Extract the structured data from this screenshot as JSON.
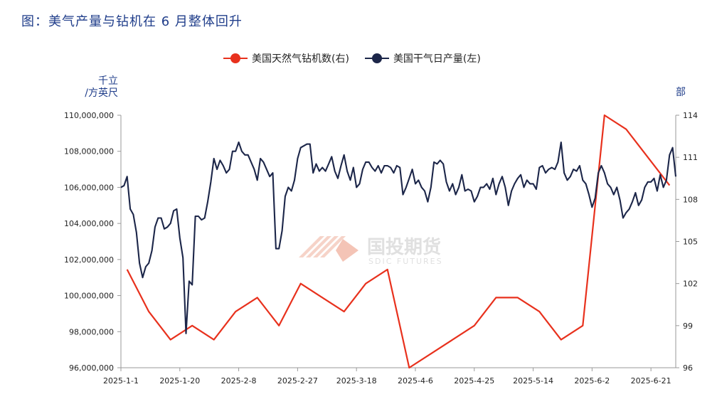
{
  "figure": {
    "title": "图：美气产量与钻机在 6 月整体回升",
    "left_unit_line1": "千立",
    "left_unit_line2": "/方英尺",
    "right_unit": "部",
    "watermark_cn": "国投期货",
    "watermark_en": "SDIC FUTURES"
  },
  "chart_data": {
    "type": "line",
    "title": "图：美气产量与钻机在 6 月整体回升",
    "x_tick_labels": [
      "2025-1-1",
      "2025-1-20",
      "2025-2-8",
      "2025-2-27",
      "2025-3-18",
      "2025-4-6",
      "2025-4-25",
      "2025-5-14",
      "2025-6-2",
      "2025-6-21"
    ],
    "x_range": [
      "2025-01-01",
      "2025-06-29"
    ],
    "left_axis": {
      "label": "千立/方英尺",
      "range": [
        96000000,
        110000000
      ],
      "ticks": [
        "96,000,000",
        "98,000,000",
        "100,000,000",
        "102,000,000",
        "104,000,000",
        "106,000,000",
        "108,000,000",
        "110,000,000"
      ]
    },
    "right_axis": {
      "label": "部",
      "range": [
        96,
        114
      ],
      "ticks": [
        "96",
        "99",
        "102",
        "105",
        "108",
        "111",
        "114"
      ]
    },
    "legend_position": "top",
    "grid": false,
    "colors": {
      "rigs": "#e8311d",
      "production": "#1c2649"
    },
    "series": [
      {
        "name": "美国天然气钻机数(右)",
        "axis": "right",
        "color": "#e8311d",
        "points": [
          [
            "2025-01-03",
            103
          ],
          [
            "2025-01-10",
            100
          ],
          [
            "2025-01-17",
            98
          ],
          [
            "2025-01-24",
            99
          ],
          [
            "2025-01-31",
            98
          ],
          [
            "2025-02-07",
            100
          ],
          [
            "2025-02-14",
            101
          ],
          [
            "2025-02-21",
            99
          ],
          [
            "2025-02-28",
            102
          ],
          [
            "2025-03-07",
            101
          ],
          [
            "2025-03-14",
            100
          ],
          [
            "2025-03-21",
            102
          ],
          [
            "2025-03-28",
            103
          ],
          [
            "2025-04-04",
            96
          ],
          [
            "2025-04-11",
            97
          ],
          [
            "2025-04-18",
            98
          ],
          [
            "2025-04-25",
            99
          ],
          [
            "2025-05-02",
            101
          ],
          [
            "2025-05-09",
            101
          ],
          [
            "2025-05-16",
            100
          ],
          [
            "2025-05-23",
            98
          ],
          [
            "2025-05-30",
            99
          ],
          [
            "2025-06-06",
            114
          ],
          [
            "2025-06-13",
            113
          ],
          [
            "2025-06-27",
            109
          ]
        ]
      },
      {
        "name": "美国干气日产量(左)",
        "axis": "left",
        "color": "#1c2649",
        "points": [
          [
            "2025-01-01",
            106000000
          ],
          [
            "2025-01-02",
            106100000
          ],
          [
            "2025-01-03",
            106600000
          ],
          [
            "2025-01-04",
            104800000
          ],
          [
            "2025-01-05",
            104500000
          ],
          [
            "2025-01-06",
            103500000
          ],
          [
            "2025-01-07",
            101800000
          ],
          [
            "2025-01-08",
            101000000
          ],
          [
            "2025-01-09",
            101600000
          ],
          [
            "2025-01-10",
            101800000
          ],
          [
            "2025-01-11",
            102500000
          ],
          [
            "2025-01-12",
            103800000
          ],
          [
            "2025-01-13",
            104300000
          ],
          [
            "2025-01-14",
            104300000
          ],
          [
            "2025-01-15",
            103700000
          ],
          [
            "2025-01-16",
            103800000
          ],
          [
            "2025-01-17",
            104000000
          ],
          [
            "2025-01-18",
            104700000
          ],
          [
            "2025-01-19",
            104800000
          ],
          [
            "2025-01-20",
            103200000
          ],
          [
            "2025-01-21",
            102100000
          ],
          [
            "2025-01-22",
            97900000
          ],
          [
            "2025-01-23",
            100800000
          ],
          [
            "2025-01-24",
            100600000
          ],
          [
            "2025-01-25",
            104400000
          ],
          [
            "2025-01-26",
            104400000
          ],
          [
            "2025-01-27",
            104200000
          ],
          [
            "2025-01-28",
            104300000
          ],
          [
            "2025-01-29",
            105200000
          ],
          [
            "2025-01-30",
            106300000
          ],
          [
            "2025-01-31",
            107600000
          ],
          [
            "2025-02-01",
            107000000
          ],
          [
            "2025-02-02",
            107500000
          ],
          [
            "2025-02-03",
            107200000
          ],
          [
            "2025-02-04",
            106800000
          ],
          [
            "2025-02-05",
            107000000
          ],
          [
            "2025-02-06",
            108000000
          ],
          [
            "2025-02-07",
            108000000
          ],
          [
            "2025-02-08",
            108500000
          ],
          [
            "2025-02-09",
            108000000
          ],
          [
            "2025-02-10",
            107800000
          ],
          [
            "2025-02-11",
            107800000
          ],
          [
            "2025-02-12",
            107400000
          ],
          [
            "2025-02-13",
            107000000
          ],
          [
            "2025-02-14",
            106400000
          ],
          [
            "2025-02-15",
            107600000
          ],
          [
            "2025-02-16",
            107400000
          ],
          [
            "2025-02-17",
            107000000
          ],
          [
            "2025-02-18",
            106600000
          ],
          [
            "2025-02-19",
            106800000
          ],
          [
            "2025-02-20",
            102600000
          ],
          [
            "2025-02-21",
            102600000
          ],
          [
            "2025-02-22",
            103600000
          ],
          [
            "2025-02-23",
            105500000
          ],
          [
            "2025-02-24",
            106000000
          ],
          [
            "2025-02-25",
            105800000
          ],
          [
            "2025-02-26",
            106400000
          ],
          [
            "2025-02-27",
            107600000
          ],
          [
            "2025-02-28",
            108200000
          ],
          [
            "2025-03-01",
            108300000
          ],
          [
            "2025-03-02",
            108400000
          ],
          [
            "2025-03-03",
            108400000
          ],
          [
            "2025-03-04",
            106800000
          ],
          [
            "2025-03-05",
            107300000
          ],
          [
            "2025-03-06",
            106900000
          ],
          [
            "2025-03-07",
            107100000
          ],
          [
            "2025-03-08",
            106900000
          ],
          [
            "2025-03-09",
            107300000
          ],
          [
            "2025-03-10",
            107700000
          ],
          [
            "2025-03-11",
            106900000
          ],
          [
            "2025-03-12",
            106500000
          ],
          [
            "2025-03-13",
            107200000
          ],
          [
            "2025-03-14",
            107800000
          ],
          [
            "2025-03-15",
            106900000
          ],
          [
            "2025-03-16",
            106400000
          ],
          [
            "2025-03-17",
            107100000
          ],
          [
            "2025-03-18",
            106000000
          ],
          [
            "2025-03-19",
            106200000
          ],
          [
            "2025-03-20",
            107000000
          ],
          [
            "2025-03-21",
            107400000
          ],
          [
            "2025-03-22",
            107400000
          ],
          [
            "2025-03-23",
            107100000
          ],
          [
            "2025-03-24",
            106900000
          ],
          [
            "2025-03-25",
            107200000
          ],
          [
            "2025-03-26",
            106800000
          ],
          [
            "2025-03-27",
            107200000
          ],
          [
            "2025-03-28",
            107200000
          ],
          [
            "2025-03-29",
            107100000
          ],
          [
            "2025-03-30",
            106800000
          ],
          [
            "2025-03-31",
            107200000
          ],
          [
            "2025-04-01",
            107100000
          ],
          [
            "2025-04-02",
            105600000
          ],
          [
            "2025-04-03",
            106000000
          ],
          [
            "2025-04-04",
            106500000
          ],
          [
            "2025-04-05",
            107000000
          ],
          [
            "2025-04-06",
            106200000
          ],
          [
            "2025-04-07",
            106400000
          ],
          [
            "2025-04-08",
            106000000
          ],
          [
            "2025-04-09",
            105800000
          ],
          [
            "2025-04-10",
            105200000
          ],
          [
            "2025-04-11",
            106000000
          ],
          [
            "2025-04-12",
            107400000
          ],
          [
            "2025-04-13",
            107300000
          ],
          [
            "2025-04-14",
            107500000
          ],
          [
            "2025-04-15",
            107300000
          ],
          [
            "2025-04-16",
            106300000
          ],
          [
            "2025-04-17",
            105800000
          ],
          [
            "2025-04-18",
            106200000
          ],
          [
            "2025-04-19",
            105600000
          ],
          [
            "2025-04-20",
            106000000
          ],
          [
            "2025-04-21",
            106700000
          ],
          [
            "2025-04-22",
            105800000
          ],
          [
            "2025-04-23",
            105900000
          ],
          [
            "2025-04-24",
            105800000
          ],
          [
            "2025-04-25",
            105200000
          ],
          [
            "2025-04-26",
            105500000
          ],
          [
            "2025-04-27",
            106000000
          ],
          [
            "2025-04-28",
            106000000
          ],
          [
            "2025-04-29",
            106200000
          ],
          [
            "2025-04-30",
            105900000
          ],
          [
            "2025-05-01",
            106500000
          ],
          [
            "2025-05-02",
            105600000
          ],
          [
            "2025-05-03",
            106200000
          ],
          [
            "2025-05-04",
            106600000
          ],
          [
            "2025-05-05",
            106000000
          ],
          [
            "2025-05-06",
            105000000
          ],
          [
            "2025-05-07",
            105800000
          ],
          [
            "2025-05-08",
            106200000
          ],
          [
            "2025-05-09",
            106500000
          ],
          [
            "2025-05-10",
            106700000
          ],
          [
            "2025-05-11",
            106000000
          ],
          [
            "2025-05-12",
            106400000
          ],
          [
            "2025-05-13",
            106200000
          ],
          [
            "2025-05-14",
            106200000
          ],
          [
            "2025-05-15",
            105900000
          ],
          [
            "2025-05-16",
            107100000
          ],
          [
            "2025-05-17",
            107200000
          ],
          [
            "2025-05-18",
            106800000
          ],
          [
            "2025-05-19",
            107000000
          ],
          [
            "2025-05-20",
            107100000
          ],
          [
            "2025-05-21",
            107000000
          ],
          [
            "2025-05-22",
            107400000
          ],
          [
            "2025-05-23",
            108500000
          ],
          [
            "2025-05-24",
            106800000
          ],
          [
            "2025-05-25",
            106400000
          ],
          [
            "2025-05-26",
            106600000
          ],
          [
            "2025-05-27",
            107000000
          ],
          [
            "2025-05-28",
            106900000
          ],
          [
            "2025-05-29",
            107200000
          ],
          [
            "2025-05-30",
            106400000
          ],
          [
            "2025-05-31",
            106200000
          ],
          [
            "2025-06-01",
            105600000
          ],
          [
            "2025-06-02",
            104900000
          ],
          [
            "2025-06-03",
            105400000
          ],
          [
            "2025-06-04",
            106800000
          ],
          [
            "2025-06-05",
            107200000
          ],
          [
            "2025-06-06",
            106800000
          ],
          [
            "2025-06-07",
            106200000
          ],
          [
            "2025-06-08",
            106000000
          ],
          [
            "2025-06-09",
            105600000
          ],
          [
            "2025-06-10",
            106000000
          ],
          [
            "2025-06-11",
            105300000
          ],
          [
            "2025-06-12",
            104300000
          ],
          [
            "2025-06-13",
            104600000
          ],
          [
            "2025-06-14",
            104800000
          ],
          [
            "2025-06-15",
            105200000
          ],
          [
            "2025-06-16",
            105700000
          ],
          [
            "2025-06-17",
            105000000
          ],
          [
            "2025-06-18",
            105300000
          ],
          [
            "2025-06-19",
            106000000
          ],
          [
            "2025-06-20",
            106300000
          ],
          [
            "2025-06-21",
            106300000
          ],
          [
            "2025-06-22",
            106500000
          ],
          [
            "2025-06-23",
            105800000
          ],
          [
            "2025-06-24",
            106700000
          ],
          [
            "2025-06-25",
            106000000
          ],
          [
            "2025-06-26",
            106400000
          ],
          [
            "2025-06-27",
            107800000
          ],
          [
            "2025-06-28",
            108200000
          ],
          [
            "2025-06-29",
            106600000
          ]
        ]
      }
    ]
  }
}
